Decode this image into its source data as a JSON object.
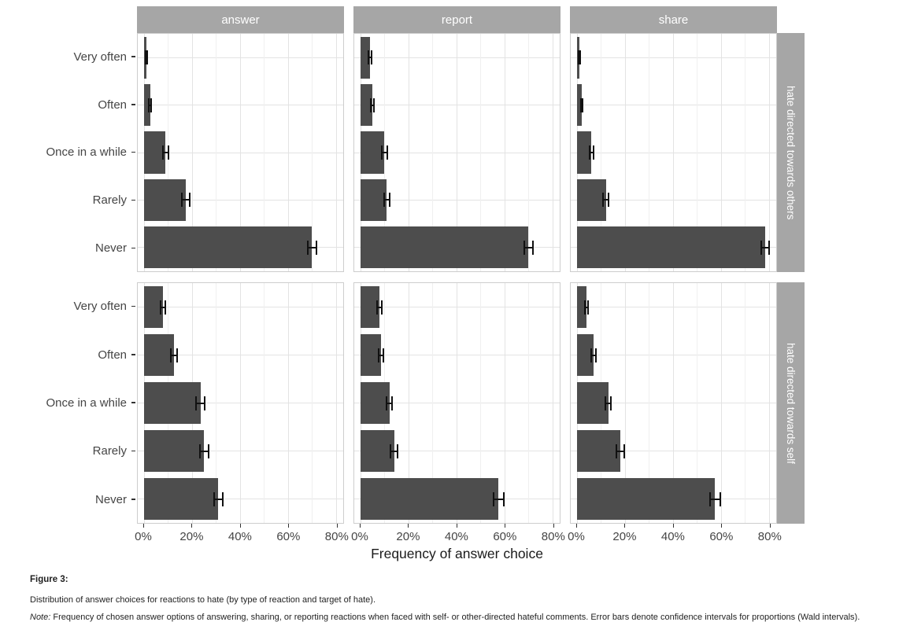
{
  "page": {
    "background": "#ffffff"
  },
  "chart_data": {
    "type": "bar",
    "orientation": "horizontal",
    "xlabel": "Frequency of answer choice",
    "facet_cols": [
      "answer",
      "report",
      "share"
    ],
    "facet_rows": [
      "hate directed towards others",
      "hate directed towards self"
    ],
    "categories": [
      "Very often",
      "Often",
      "Once in a while",
      "Rarely",
      "Never"
    ],
    "x_ticks": [
      0,
      20,
      40,
      60,
      80
    ],
    "x_tick_labels": [
      "0%",
      "20%",
      "40%",
      "60%",
      "80%"
    ],
    "x_domain": [
      -2.6,
      83
    ],
    "grid": "on",
    "legend": "none",
    "panels": [
      {
        "facet_col": "answer",
        "facet_row": "hate directed towards others",
        "values": [
          1,
          2.5,
          9,
          17.5,
          70
        ],
        "ci": [
          0.6,
          0.9,
          1.4,
          1.9,
          2.2
        ]
      },
      {
        "facet_col": "report",
        "facet_row": "hate directed towards others",
        "values": [
          4,
          5,
          10,
          11,
          70
        ],
        "ci": [
          1,
          1,
          1.4,
          1.5,
          2.1
        ]
      },
      {
        "facet_col": "share",
        "facet_row": "hate directed towards others",
        "values": [
          1,
          2,
          6,
          12,
          78.5
        ],
        "ci": [
          0.5,
          0.7,
          1.1,
          1.5,
          1.9
        ]
      },
      {
        "facet_col": "answer",
        "facet_row": "hate directed towards self",
        "values": [
          8,
          12.5,
          23.5,
          25,
          31
        ],
        "ci": [
          1.3,
          1.6,
          2.0,
          2.1,
          2.2
        ]
      },
      {
        "facet_col": "report",
        "facet_row": "hate directed towards self",
        "values": [
          8,
          8.5,
          12,
          14,
          57.5
        ],
        "ci": [
          1.3,
          1.3,
          1.5,
          1.7,
          2.4
        ]
      },
      {
        "facet_col": "share",
        "facet_row": "hate directed towards self",
        "values": [
          4,
          7,
          13,
          18,
          57.5
        ],
        "ci": [
          1.0,
          1.3,
          1.6,
          1.9,
          2.4
        ]
      }
    ]
  },
  "caption": {
    "figure_label": "Figure 3:",
    "description": "Distribution of answer choices for reactions to hate (by type of reaction and target of hate).",
    "note_prefix": "Note:",
    "note_text": " Frequency of chosen answer options of answering, sharing, or reporting reactions when faced with self- or other-directed hateful comments. Error bars denote confidence intervals for proportions (Wald intervals)."
  },
  "colors": {
    "bar": "#4d4d4d",
    "errorbar": "#111111",
    "strip_background": "#a6a6a6",
    "strip_text": "#ffffff",
    "grid_major": "#e3e3e3",
    "grid_minor": "#f0f0f0",
    "panel_border": "#cdcdcd",
    "axis_text": "#454545",
    "axis_title": "#1a1a1a",
    "caption_text": "#1f1f1f"
  }
}
